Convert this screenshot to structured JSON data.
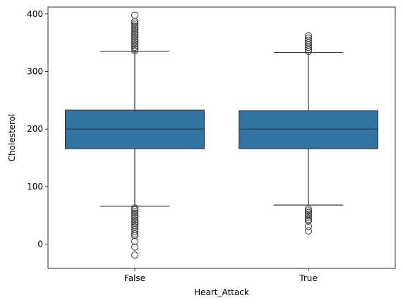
{
  "chart_data": {
    "type": "box",
    "title": "",
    "xlabel": "Heart_Attack",
    "ylabel": "Cholesterol",
    "ylim": [
      -42,
      412
    ],
    "yticks": [
      0,
      100,
      200,
      300,
      400
    ],
    "ytick_labels": [
      "0",
      "100",
      "200",
      "300",
      "400"
    ],
    "categories": [
      "False",
      "True"
    ],
    "grid": false,
    "colors": {
      "box_fill": "#3274a1",
      "line": "#3d3d3d",
      "axis": "#000000"
    },
    "boxes": [
      {
        "category": "False",
        "whisker_low": 66,
        "q1": 166,
        "median": 200,
        "q3": 233,
        "whisker_high": 335,
        "outliers": [
          -19,
          -5,
          5,
          15,
          18,
          22,
          26,
          30,
          33,
          36,
          39,
          42,
          45,
          48,
          51,
          54,
          57,
          60,
          63,
          336,
          339,
          342,
          345,
          348,
          351,
          354,
          357,
          360,
          363,
          366,
          369,
          372,
          375,
          378,
          381,
          384,
          387,
          398
        ]
      },
      {
        "category": "True",
        "whisker_low": 68,
        "q1": 166,
        "median": 200,
        "q3": 232,
        "whisker_high": 333,
        "outliers": [
          23,
          31,
          40,
          43,
          46,
          49,
          52,
          55,
          58,
          61,
          335,
          338,
          342,
          346,
          350,
          354,
          358,
          362
        ]
      }
    ]
  }
}
